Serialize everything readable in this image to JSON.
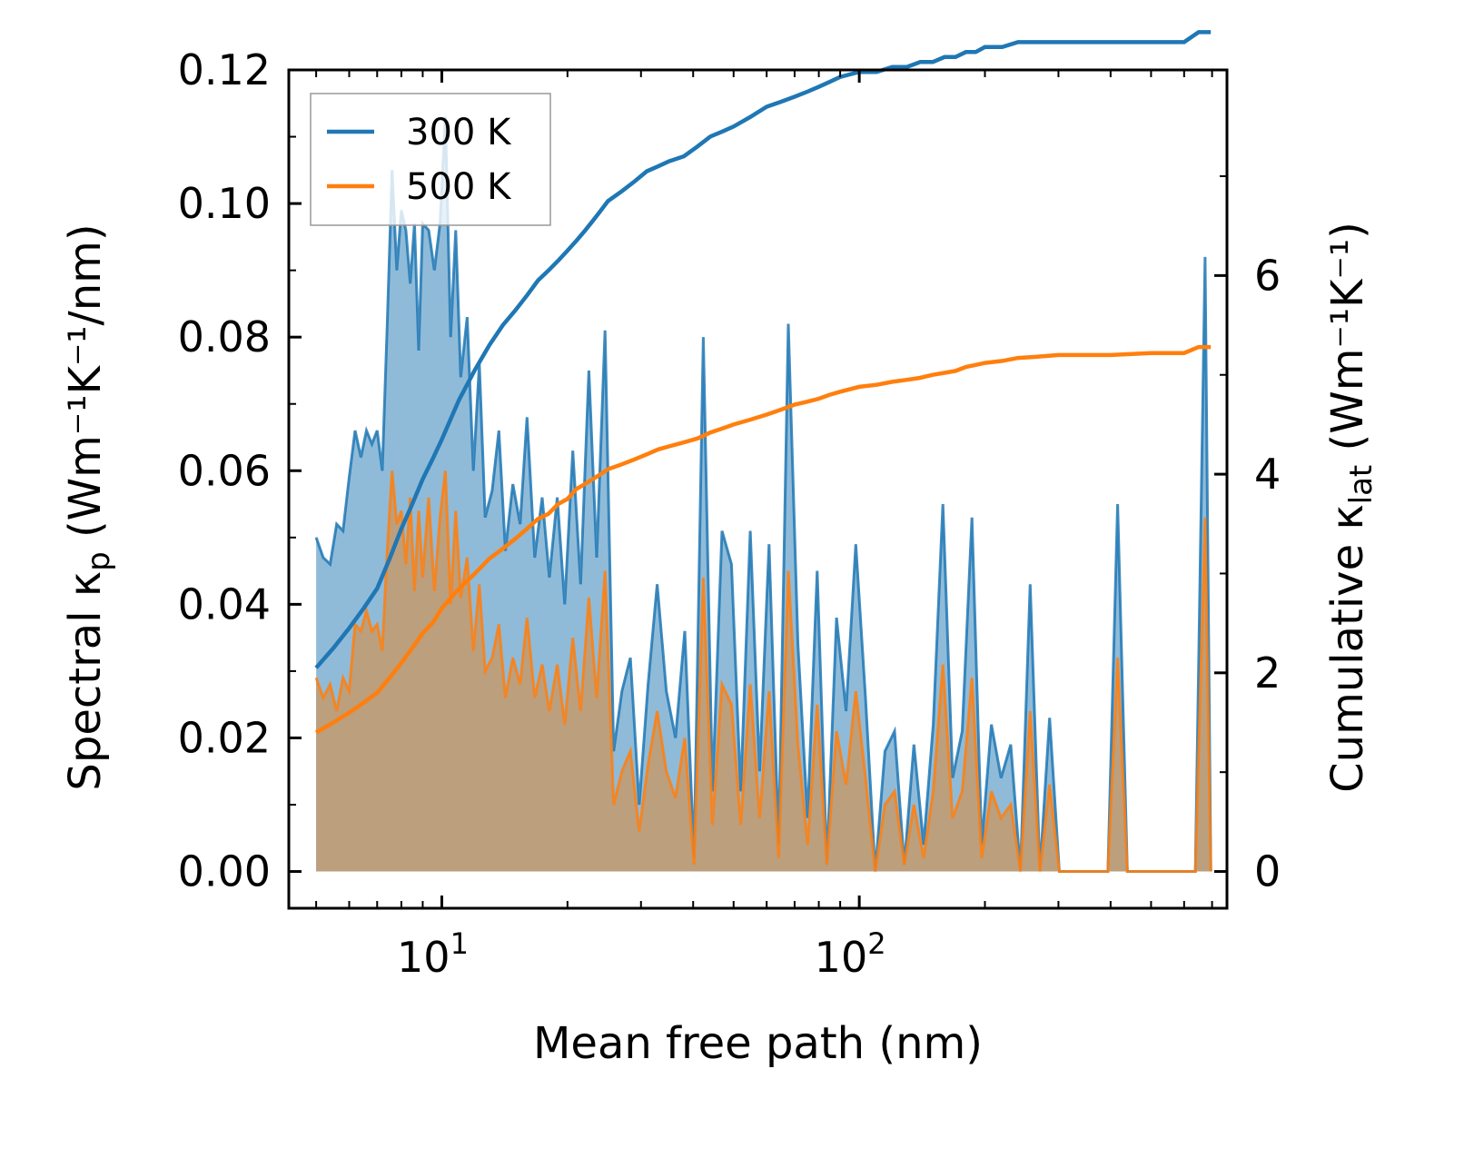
{
  "chart_data": {
    "type": "area",
    "title": "",
    "xlabel": "Mean free path (nm)",
    "ylabel_left": {
      "prefix": "Spectral κ",
      "sub": "p",
      "units": " (Wm⁻¹K⁻¹/nm)"
    },
    "ylabel_right": {
      "prefix": "Cumulative κ",
      "sub": "lat",
      "units": " (Wm⁻¹K⁻¹)"
    },
    "x_scale": "log",
    "xlim": [
      4.3,
      760
    ],
    "ylim_left": [
      -0.0055,
      0.12
    ],
    "ylim_right": [
      -0.37,
      8.07
    ],
    "x_ticks": [
      {
        "value": 10,
        "base": "10",
        "exp": "1"
      },
      {
        "value": 100,
        "base": "10",
        "exp": "2"
      }
    ],
    "y_ticks_left": [
      {
        "value": 0.0,
        "label": "0.00"
      },
      {
        "value": 0.02,
        "label": "0.02"
      },
      {
        "value": 0.04,
        "label": "0.04"
      },
      {
        "value": 0.06,
        "label": "0.06"
      },
      {
        "value": 0.08,
        "label": "0.08"
      },
      {
        "value": 0.1,
        "label": "0.10"
      },
      {
        "value": 0.12,
        "label": "0.12"
      }
    ],
    "y_ticks_right": [
      {
        "value": 0,
        "label": "0"
      },
      {
        "value": 2,
        "label": "2"
      },
      {
        "value": 4,
        "label": "4"
      },
      {
        "value": 6,
        "label": "6"
      }
    ],
    "legend": {
      "position": "top-left",
      "entries": [
        "300 K",
        "500 K"
      ]
    },
    "spectral_series": [
      {
        "name": "300 K",
        "color": "#1f77b4",
        "fill": "#1f77b4",
        "x": [
          5.0,
          5.2,
          5.4,
          5.6,
          5.8,
          6.0,
          6.2,
          6.4,
          6.6,
          6.8,
          7.0,
          7.2,
          7.4,
          7.6,
          7.8,
          8.0,
          8.2,
          8.4,
          8.6,
          8.8,
          9.0,
          9.3,
          9.6,
          9.9,
          10.2,
          10.5,
          10.8,
          11.1,
          11.5,
          11.9,
          12.3,
          12.7,
          13.2,
          13.7,
          14.2,
          14.8,
          15.4,
          16.0,
          16.7,
          17.4,
          18.1,
          18.9,
          19.7,
          20.6,
          21.5,
          22.5,
          23.5,
          24.6,
          25.8,
          27.0,
          28.3,
          29.7,
          31.2,
          32.8,
          34.5,
          36.3,
          38.2,
          40.2,
          42.3,
          44.5,
          46.9,
          49.4,
          52.0,
          54.8,
          57.7,
          60.8,
          64.1,
          67.6,
          71.3,
          75.2,
          79.3,
          83.6,
          88.2,
          93.0,
          98.1,
          103.5,
          109.2,
          115.2,
          121.5,
          128.2,
          135.2,
          142.6,
          150.4,
          158.6,
          167.3,
          176.5,
          186.2,
          196.4,
          207.2,
          218.6,
          230.6,
          243.3,
          256.7,
          270.8,
          285.7,
          301.4,
          318.0,
          335.5,
          354.0,
          373.5,
          394.1,
          415.8,
          438.7,
          462.8,
          488.3,
          515.2,
          543.5,
          573.4,
          605.0,
          638.3,
          673.5,
          695.0
        ],
        "values": [
          0.05,
          0.047,
          0.046,
          0.052,
          0.051,
          0.059,
          0.066,
          0.062,
          0.066,
          0.064,
          0.066,
          0.06,
          0.082,
          0.105,
          0.09,
          0.099,
          0.096,
          0.088,
          0.097,
          0.078,
          0.097,
          0.096,
          0.09,
          0.097,
          0.113,
          0.08,
          0.096,
          0.074,
          0.083,
          0.06,
          0.076,
          0.053,
          0.057,
          0.066,
          0.048,
          0.058,
          0.052,
          0.068,
          0.047,
          0.056,
          0.044,
          0.056,
          0.04,
          0.063,
          0.043,
          0.075,
          0.047,
          0.081,
          0.018,
          0.027,
          0.032,
          0.01,
          0.028,
          0.043,
          0.027,
          0.02,
          0.036,
          0.002,
          0.08,
          0.012,
          0.051,
          0.046,
          0.012,
          0.051,
          0.015,
          0.049,
          0.004,
          0.082,
          0.034,
          0.008,
          0.045,
          0.001,
          0.038,
          0.024,
          0.049,
          0.026,
          0.0,
          0.018,
          0.021,
          0.001,
          0.019,
          0.004,
          0.022,
          0.055,
          0.014,
          0.021,
          0.053,
          0.004,
          0.022,
          0.014,
          0.019,
          0.0,
          0.043,
          0.0,
          0.023,
          0.0,
          0.0,
          0.0,
          0.0,
          0.0,
          0.0,
          0.055,
          0.0,
          0.0,
          0.0,
          0.0,
          0.0,
          0.0,
          0.0,
          0.0,
          0.092,
          0.0
        ],
        "values_500": null
      },
      {
        "name": "500 K",
        "color": "#ff7f0e",
        "fill": "#c49a6c",
        "x": [
          5.0,
          5.2,
          5.4,
          5.6,
          5.8,
          6.0,
          6.2,
          6.4,
          6.6,
          6.8,
          7.0,
          7.2,
          7.4,
          7.6,
          7.8,
          8.0,
          8.2,
          8.4,
          8.6,
          8.8,
          9.0,
          9.3,
          9.6,
          9.9,
          10.2,
          10.5,
          10.8,
          11.1,
          11.5,
          11.9,
          12.3,
          12.7,
          13.2,
          13.7,
          14.2,
          14.8,
          15.4,
          16.0,
          16.7,
          17.4,
          18.1,
          18.9,
          19.7,
          20.6,
          21.5,
          22.5,
          23.5,
          24.6,
          25.8,
          27.0,
          28.3,
          29.7,
          31.2,
          32.8,
          34.5,
          36.3,
          38.2,
          40.2,
          42.3,
          44.5,
          46.9,
          49.4,
          52.0,
          54.8,
          57.7,
          60.8,
          64.1,
          67.6,
          71.3,
          75.2,
          79.3,
          83.6,
          88.2,
          93.0,
          98.1,
          103.5,
          109.2,
          115.2,
          121.5,
          128.2,
          135.2,
          142.6,
          150.4,
          158.6,
          167.3,
          176.5,
          186.2,
          196.4,
          207.2,
          218.6,
          230.6,
          243.3,
          256.7,
          270.8,
          285.7,
          301.4,
          318.0,
          335.5,
          354.0,
          373.5,
          394.1,
          415.8,
          438.7,
          462.8,
          488.3,
          515.2,
          543.5,
          573.4,
          605.0,
          638.3,
          673.5,
          695.0
        ],
        "values": [
          0.029,
          0.026,
          0.028,
          0.024,
          0.029,
          0.027,
          0.037,
          0.036,
          0.039,
          0.036,
          0.037,
          0.033,
          0.048,
          0.06,
          0.052,
          0.054,
          0.046,
          0.056,
          0.042,
          0.054,
          0.044,
          0.056,
          0.042,
          0.053,
          0.06,
          0.04,
          0.054,
          0.041,
          0.047,
          0.033,
          0.043,
          0.03,
          0.032,
          0.037,
          0.026,
          0.032,
          0.028,
          0.038,
          0.026,
          0.031,
          0.024,
          0.031,
          0.022,
          0.035,
          0.024,
          0.041,
          0.026,
          0.045,
          0.01,
          0.015,
          0.018,
          0.006,
          0.016,
          0.024,
          0.015,
          0.011,
          0.02,
          0.001,
          0.044,
          0.007,
          0.028,
          0.025,
          0.007,
          0.028,
          0.008,
          0.027,
          0.002,
          0.045,
          0.019,
          0.004,
          0.025,
          0.001,
          0.021,
          0.013,
          0.027,
          0.014,
          0.0,
          0.01,
          0.012,
          0.001,
          0.01,
          0.002,
          0.012,
          0.031,
          0.008,
          0.012,
          0.029,
          0.002,
          0.012,
          0.008,
          0.01,
          0.0,
          0.024,
          0.0,
          0.013,
          0.0,
          0.0,
          0.0,
          0.0,
          0.0,
          0.0,
          0.032,
          0.0,
          0.0,
          0.0,
          0.0,
          0.0,
          0.0,
          0.0,
          0.0,
          0.053,
          0.0
        ]
      }
    ],
    "cumulative_series": [
      {
        "name": "300 K",
        "color": "#1f77b4",
        "x": [
          5.0,
          5.5,
          6.0,
          6.5,
          7.0,
          7.5,
          8.0,
          8.5,
          9.0,
          9.5,
          10.0,
          11.0,
          12.0,
          13.0,
          14.0,
          15.0,
          16.0,
          17.0,
          18.0,
          19.0,
          20.0,
          21.0,
          22.0,
          23.0,
          24.0,
          25.0,
          27.0,
          29.0,
          31.0,
          33.0,
          35.0,
          38.0,
          41.0,
          44.0,
          47.0,
          50.0,
          55.0,
          60.0,
          65.0,
          70.0,
          75.0,
          80.0,
          85.0,
          90.0,
          100.0,
          110.0,
          120.0,
          130.0,
          140.0,
          150.0,
          160.0,
          170.0,
          180.0,
          190.0,
          200.0,
          220.0,
          240.0,
          260.0,
          280.0,
          300.0,
          350.0,
          400.0,
          500.0,
          600.0,
          650.0,
          695.0
        ],
        "values": [
          2.05,
          2.25,
          2.45,
          2.65,
          2.85,
          3.15,
          3.45,
          3.7,
          3.95,
          4.15,
          4.35,
          4.75,
          5.05,
          5.3,
          5.5,
          5.65,
          5.8,
          5.95,
          6.05,
          6.15,
          6.25,
          6.35,
          6.45,
          6.55,
          6.65,
          6.75,
          6.85,
          6.95,
          7.05,
          7.1,
          7.15,
          7.2,
          7.3,
          7.4,
          7.45,
          7.5,
          7.6,
          7.7,
          7.75,
          7.8,
          7.85,
          7.9,
          7.95,
          8.0,
          8.05,
          8.05,
          8.1,
          8.1,
          8.15,
          8.15,
          8.2,
          8.2,
          8.25,
          8.25,
          8.3,
          8.3,
          8.35,
          8.35,
          8.35,
          8.35,
          8.35,
          8.35,
          8.35,
          8.35,
          8.45,
          8.45
        ]
      },
      {
        "name": "500 K",
        "color": "#ff7f0e",
        "x": [
          5.0,
          5.5,
          6.0,
          6.5,
          7.0,
          7.5,
          8.0,
          8.5,
          9.0,
          9.5,
          10.0,
          11.0,
          12.0,
          13.0,
          14.0,
          15.0,
          16.0,
          17.0,
          18.0,
          19.0,
          20.0,
          21.0,
          22.0,
          23.0,
          24.0,
          25.0,
          27.0,
          29.0,
          31.0,
          33.0,
          35.0,
          38.0,
          41.0,
          44.0,
          47.0,
          50.0,
          55.0,
          60.0,
          65.0,
          70.0,
          75.0,
          80.0,
          85.0,
          90.0,
          100.0,
          110.0,
          120.0,
          130.0,
          140.0,
          150.0,
          160.0,
          170.0,
          180.0,
          190.0,
          200.0,
          220.0,
          240.0,
          260.0,
          280.0,
          300.0,
          350.0,
          400.0,
          500.0,
          600.0,
          650.0,
          695.0
        ],
        "values": [
          1.4,
          1.5,
          1.6,
          1.7,
          1.8,
          1.95,
          2.1,
          2.25,
          2.4,
          2.5,
          2.65,
          2.85,
          3.0,
          3.15,
          3.25,
          3.35,
          3.45,
          3.55,
          3.6,
          3.7,
          3.75,
          3.85,
          3.9,
          3.95,
          4.0,
          4.05,
          4.1,
          4.15,
          4.2,
          4.25,
          4.28,
          4.32,
          4.36,
          4.42,
          4.46,
          4.5,
          4.55,
          4.6,
          4.65,
          4.7,
          4.73,
          4.76,
          4.8,
          4.83,
          4.88,
          4.9,
          4.93,
          4.95,
          4.97,
          5.0,
          5.02,
          5.04,
          5.08,
          5.1,
          5.12,
          5.14,
          5.17,
          5.18,
          5.19,
          5.2,
          5.2,
          5.2,
          5.22,
          5.22,
          5.28,
          5.28
        ]
      }
    ]
  }
}
